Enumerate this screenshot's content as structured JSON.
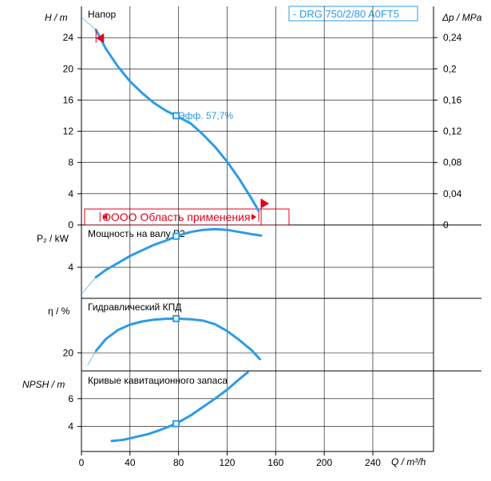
{
  "chart_data": [
    {
      "type": "line",
      "name": "head",
      "title": "Напор",
      "ylabel": "H / m",
      "y2label": "Δp / MPa",
      "ylim": [
        0,
        28
      ],
      "y2lim": [
        0,
        0.28
      ],
      "yticks": [
        0,
        4,
        8,
        12,
        16,
        20,
        24
      ],
      "y2ticks": [
        "0",
        "0,04",
        "0,08",
        "0,12",
        "0,16",
        "0,2",
        "0,24"
      ],
      "legend": "- DRG 750/2/80 A0FT5",
      "annotation": "Эфф.  57,7%",
      "operating_range_label": "OOOO Область применения",
      "operating_range": [
        12,
        148
      ],
      "series": [
        {
          "x": [
            12,
            20,
            30,
            40,
            50,
            60,
            70,
            78,
            90,
            100,
            110,
            120,
            130,
            140,
            146
          ],
          "y": [
            25.0,
            22.6,
            20.3,
            18.4,
            16.9,
            15.6,
            14.6,
            14.0,
            13.0,
            11.6,
            10.0,
            8.1,
            5.9,
            3.4,
            1.8
          ]
        }
      ],
      "extension": {
        "x": [
          0,
          12
        ],
        "y": [
          26.6,
          25.0
        ]
      },
      "duty_point": {
        "x": 78,
        "y": 14.0
      }
    },
    {
      "type": "line",
      "name": "power",
      "title": "Мощность на валу P2",
      "ylabel": "P₂ / kW",
      "ylim": [
        1.8,
        7.0
      ],
      "yticks": [
        4
      ],
      "series": [
        {
          "x": [
            12,
            20,
            30,
            40,
            50,
            60,
            70,
            78,
            90,
            100,
            110,
            120,
            130,
            140,
            148
          ],
          "y": [
            3.3,
            3.8,
            4.3,
            4.8,
            5.2,
            5.6,
            5.9,
            6.2,
            6.5,
            6.65,
            6.7,
            6.65,
            6.5,
            6.35,
            6.25
          ]
        }
      ],
      "extension": {
        "x": [
          0,
          12
        ],
        "y": [
          2.1,
          3.3
        ]
      },
      "duty_point": {
        "x": 78,
        "y": 6.2
      }
    },
    {
      "type": "line",
      "name": "efficiency",
      "title": "Гидравлический КПД",
      "ylabel": "η / %",
      "ylim": [
        0,
        80
      ],
      "yticks": [
        20
      ],
      "series": [
        {
          "x": [
            12,
            20,
            30,
            40,
            50,
            60,
            70,
            78,
            90,
            100,
            110,
            120,
            130,
            140,
            147
          ],
          "y": [
            22,
            35,
            45,
            51,
            54.5,
            56.5,
            57.5,
            57.7,
            57,
            55.5,
            51.5,
            44,
            34,
            23,
            13
          ]
        }
      ],
      "extension": {
        "x": [
          5,
          12
        ],
        "y": [
          6,
          22
        ]
      },
      "duty_point": {
        "x": 78,
        "y": 57.7
      }
    },
    {
      "type": "line",
      "name": "npsh",
      "title": "Кривые кавитационного запаса",
      "ylabel": "NPSH / m",
      "ylim": [
        2.2,
        8.0
      ],
      "yticks": [
        4,
        6
      ],
      "series": [
        {
          "x": [
            25,
            35,
            45,
            55,
            65,
            78,
            90,
            100,
            110,
            120,
            130,
            137
          ],
          "y": [
            2.95,
            3.05,
            3.25,
            3.45,
            3.75,
            4.2,
            4.8,
            5.4,
            6.0,
            6.65,
            7.4,
            7.9
          ]
        }
      ],
      "duty_point": {
        "x": 78,
        "y": 4.2
      }
    }
  ],
  "x_axis": {
    "label": "Q / m³/h",
    "xlim": [
      0,
      290
    ],
    "ticks": [
      0,
      40,
      80,
      120,
      160,
      200,
      240
    ]
  },
  "colors": {
    "curve": "#2e9be6",
    "range": "#e3001b",
    "axis": "#000000"
  }
}
